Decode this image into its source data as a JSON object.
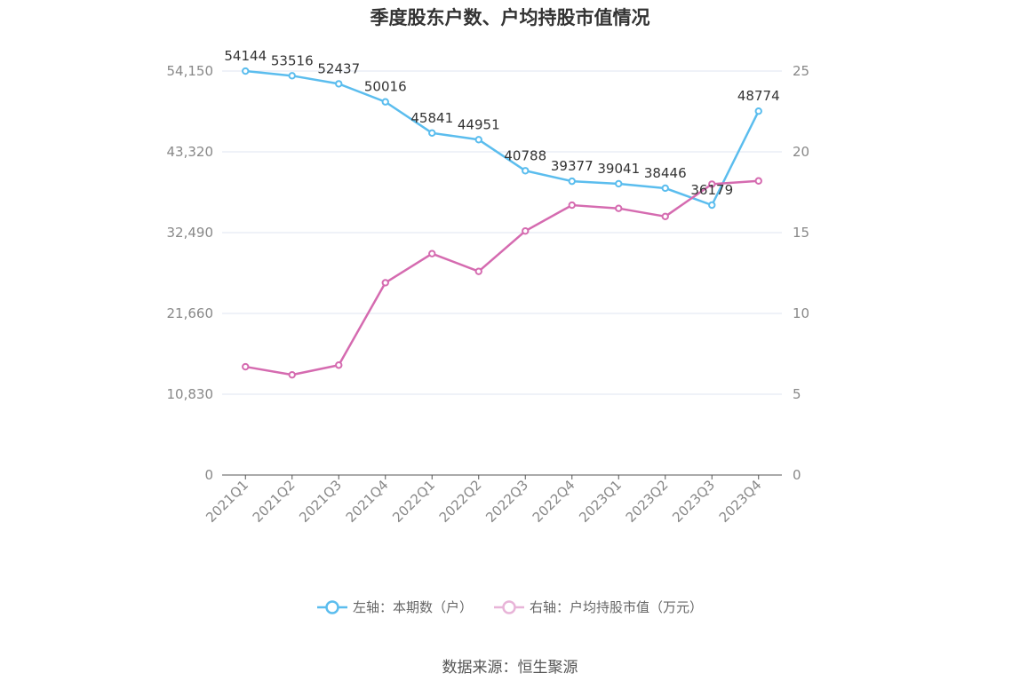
{
  "chart_data": {
    "type": "line",
    "title": "季度股东户数、户均持股市值情况",
    "categories": [
      "2021Q1",
      "2021Q2",
      "2021Q3",
      "2021Q4",
      "2022Q1",
      "2022Q2",
      "2022Q3",
      "2022Q4",
      "2023Q1",
      "2023Q2",
      "2023Q3",
      "2023Q4"
    ],
    "series": [
      {
        "name": "左轴：本期数（户）",
        "axis": "left",
        "color": "#5bbdee",
        "values": [
          54144,
          53516,
          52437,
          50016,
          45841,
          44951,
          40788,
          39377,
          39041,
          38446,
          36179,
          48774
        ],
        "labels": [
          "54144",
          "53516",
          "52437",
          "50016",
          "45841",
          "44951",
          "40788",
          "39377",
          "39041",
          "38446",
          "36179",
          "48774"
        ]
      },
      {
        "name": "右轴：户均持股市值（万元）",
        "axis": "right",
        "color": "#d56bb0",
        "values": [
          6.7,
          6.2,
          6.8,
          11.9,
          13.7,
          12.6,
          15.1,
          16.7,
          16.5,
          16.0,
          18.0,
          18.2
        ]
      }
    ],
    "left_axis": {
      "ylim": [
        0,
        54150
      ],
      "ticks": [
        "0",
        "10,830",
        "21,660",
        "32,490",
        "43,320",
        "54,150"
      ],
      "tick_values": [
        0,
        10830,
        21660,
        32490,
        43320,
        54150
      ]
    },
    "right_axis": {
      "ylim": [
        0,
        25
      ],
      "ticks": [
        "0",
        "5",
        "10",
        "15",
        "20",
        "25"
      ],
      "tick_values": [
        0,
        5,
        10,
        15,
        20,
        25
      ]
    },
    "grid": true,
    "legend_position": "bottom"
  },
  "source": "数据来源：恒生聚源"
}
